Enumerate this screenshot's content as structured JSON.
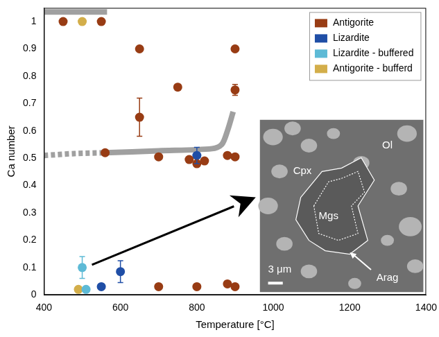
{
  "chart_data": {
    "type": "scatter",
    "xlabel": "Temperature [°C]",
    "ylabel": "Ca number",
    "xlim": [
      400,
      1400
    ],
    "xticks": [
      400,
      600,
      800,
      1000,
      1200,
      1400
    ],
    "ylim": [
      0,
      1.05
    ],
    "yticks": [
      0,
      0.1,
      0.2,
      0.3,
      0.4,
      0.5,
      0.6,
      0.7,
      0.8,
      0.9,
      1
    ],
    "grid": false,
    "legend": "upper right",
    "series": [
      {
        "name": "Antigorite",
        "color": "#983c14",
        "marker": "circle",
        "x": [
          450,
          550,
          650,
          750,
          650,
          560,
          700,
          780,
          800,
          820,
          880,
          900,
          900,
          900,
          700,
          800,
          880,
          900
        ],
        "values": [
          1.0,
          1.0,
          0.9,
          0.76,
          0.65,
          0.52,
          0.505,
          0.495,
          0.48,
          0.49,
          0.51,
          0.505,
          0.9,
          0.75,
          0.03,
          0.03,
          0.04,
          0.03
        ],
        "errors": [
          null,
          null,
          null,
          null,
          0.07,
          null,
          null,
          null,
          null,
          null,
          null,
          null,
          null,
          0.02,
          null,
          null,
          null,
          null
        ]
      },
      {
        "name": "Lizardite",
        "color": "#1f4ea6",
        "marker": "circle",
        "x": [
          550,
          600,
          800
        ],
        "values": [
          0.03,
          0.085,
          0.51
        ],
        "errors": [
          null,
          0.04,
          0.03
        ]
      },
      {
        "name": "Lizardite - buffered",
        "color": "#5dbad6",
        "marker": "circle",
        "x": [
          500,
          510
        ],
        "values": [
          0.1,
          0.02
        ],
        "errors": [
          0.04,
          null
        ]
      },
      {
        "name": "Antigorite - bufferd",
        "color": "#d3ae4a",
        "marker": "circle",
        "x": [
          500,
          490
        ],
        "values": [
          1.0,
          0.02
        ],
        "errors": [
          null,
          null
        ]
      }
    ],
    "trend_lines": [
      {
        "color": "#a0a0a0",
        "line_style": "dotted",
        "x": [
          400,
          480,
          560
        ],
        "values": [
          0.51,
          0.517,
          0.52
        ]
      },
      {
        "color": "#a0a0a0",
        "line_style": "solid",
        "x": [
          560,
          700,
          840,
          865,
          880,
          895
        ],
        "values": [
          0.52,
          0.527,
          0.535,
          0.55,
          0.6,
          0.67
        ]
      },
      {
        "color": "#a0a0a0",
        "line_style": "solid",
        "x": [
          400,
          565
        ],
        "values": [
          1.035,
          1.035
        ]
      }
    ],
    "inset": {
      "labels": [
        "Ol",
        "Cpx",
        "Mgs",
        "Arag"
      ],
      "scale_bar": "3 μm"
    }
  }
}
